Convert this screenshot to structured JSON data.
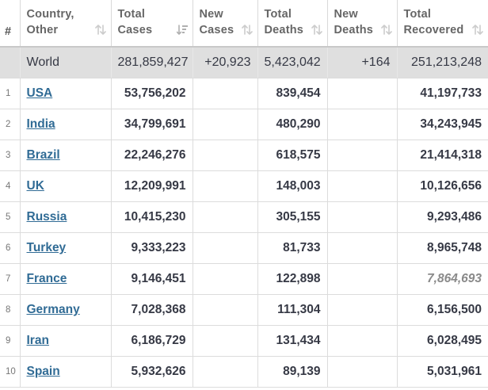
{
  "headers": {
    "rank": "#",
    "country_l1": "Country,",
    "country_l2": "Other",
    "total_cases_l1": "Total",
    "total_cases_l2": "Cases",
    "new_cases_l1": "New",
    "new_cases_l2": "Cases",
    "total_deaths_l1": "Total",
    "total_deaths_l2": "Deaths",
    "new_deaths_l1": "New",
    "new_deaths_l2": "Deaths",
    "total_recovered_l1": "Total",
    "total_recovered_l2": "Recovered"
  },
  "world": {
    "country": "World",
    "total_cases": "281,859,427",
    "new_cases": "+20,923",
    "total_deaths": "5,423,042",
    "new_deaths": "+164",
    "total_recovered": "251,213,248"
  },
  "rows": [
    {
      "rank": "1",
      "country": "USA",
      "total_cases": "53,756,202",
      "new_cases": "",
      "total_deaths": "839,454",
      "new_deaths": "",
      "total_recovered": "41,197,733"
    },
    {
      "rank": "2",
      "country": "India",
      "total_cases": "34,799,691",
      "new_cases": "",
      "total_deaths": "480,290",
      "new_deaths": "",
      "total_recovered": "34,243,945"
    },
    {
      "rank": "3",
      "country": "Brazil",
      "total_cases": "22,246,276",
      "new_cases": "",
      "total_deaths": "618,575",
      "new_deaths": "",
      "total_recovered": "21,414,318"
    },
    {
      "rank": "4",
      "country": "UK",
      "total_cases": "12,209,991",
      "new_cases": "",
      "total_deaths": "148,003",
      "new_deaths": "",
      "total_recovered": "10,126,656"
    },
    {
      "rank": "5",
      "country": "Russia",
      "total_cases": "10,415,230",
      "new_cases": "",
      "total_deaths": "305,155",
      "new_deaths": "",
      "total_recovered": "9,293,486"
    },
    {
      "rank": "6",
      "country": "Turkey",
      "total_cases": "9,333,223",
      "new_cases": "",
      "total_deaths": "81,733",
      "new_deaths": "",
      "total_recovered": "8,965,748"
    },
    {
      "rank": "7",
      "country": "France",
      "total_cases": "9,146,451",
      "new_cases": "",
      "total_deaths": "122,898",
      "new_deaths": "",
      "total_recovered": "7,864,693"
    },
    {
      "rank": "8",
      "country": "Germany",
      "total_cases": "7,028,368",
      "new_cases": "",
      "total_deaths": "111,304",
      "new_deaths": "",
      "total_recovered": "6,156,500"
    },
    {
      "rank": "9",
      "country": "Iran",
      "total_cases": "6,186,729",
      "new_cases": "",
      "total_deaths": "131,434",
      "new_deaths": "",
      "total_recovered": "6,028,495"
    },
    {
      "rank": "10",
      "country": "Spain",
      "total_cases": "5,932,626",
      "new_cases": "",
      "total_deaths": "89,139",
      "new_deaths": "",
      "total_recovered": "5,031,961"
    }
  ],
  "style": {
    "link_color": "#306b95",
    "world_row_bg": "#dfdfdf",
    "border_color": "#dcdcdc",
    "sort_icon_color": "#c8c8c8"
  },
  "icons": {
    "sort_default": "sort-icon",
    "sort_active": "sort-desc-icon"
  }
}
